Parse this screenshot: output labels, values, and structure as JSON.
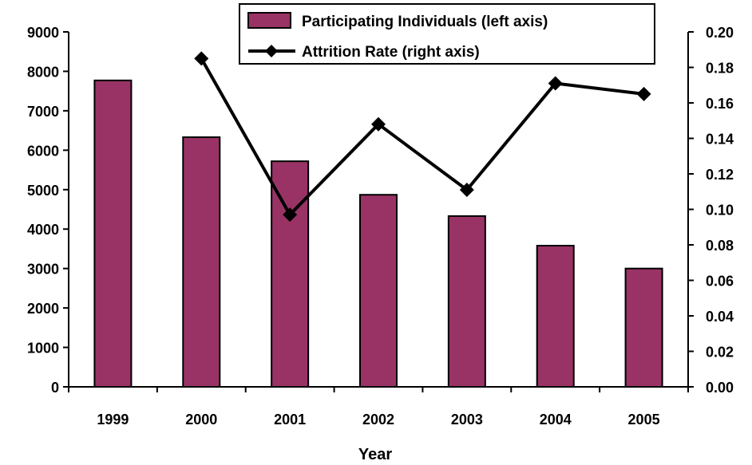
{
  "chart_data": {
    "type": "bar",
    "categories": [
      "1999",
      "2000",
      "2001",
      "2002",
      "2003",
      "2004",
      "2005"
    ],
    "series": [
      {
        "name": "Participating Individuals (left axis)",
        "type": "bar",
        "axis": "left",
        "color": "#993366",
        "values": [
          7770,
          6330,
          5720,
          4870,
          4330,
          3580,
          3000
        ]
      },
      {
        "name": "Attrition Rate (right axis)",
        "type": "line",
        "axis": "right",
        "color": "#000000",
        "marker": "diamond",
        "values": [
          null,
          0.185,
          0.097,
          0.148,
          0.111,
          0.171,
          0.165
        ]
      }
    ],
    "xlabel": "Year",
    "ylabel": "",
    "y2label": "",
    "ylim": [
      0,
      9000
    ],
    "y2lim": [
      0,
      0.2
    ],
    "yticks": [
      "0",
      "1000",
      "2000",
      "3000",
      "4000",
      "5000",
      "6000",
      "7000",
      "8000",
      "9000"
    ],
    "y2ticks": [
      "0.00",
      "0.02",
      "0.04",
      "0.06",
      "0.08",
      "0.10",
      "0.12",
      "0.14",
      "0.16",
      "0.18",
      "0.20"
    ],
    "grid": false,
    "legend": "top-center"
  }
}
